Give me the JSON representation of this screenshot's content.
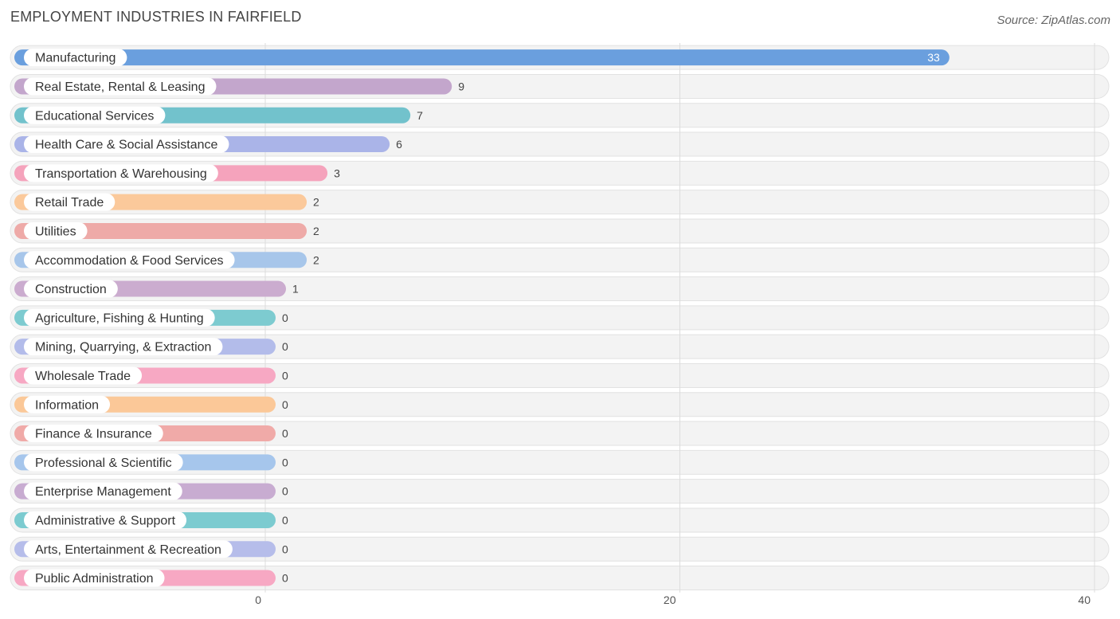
{
  "title": "EMPLOYMENT INDUSTRIES IN FAIRFIELD",
  "source": "Source: ZipAtlas.com",
  "chart_data": {
    "type": "bar",
    "orientation": "horizontal",
    "title": "EMPLOYMENT INDUSTRIES IN FAIRFIELD",
    "xlim": [
      0,
      40
    ],
    "xticks": [
      0,
      20,
      40
    ],
    "grid": true,
    "categories": [
      "Manufacturing",
      "Real Estate, Rental & Leasing",
      "Educational Services",
      "Health Care & Social Assistance",
      "Transportation & Warehousing",
      "Retail Trade",
      "Utilities",
      "Accommodation & Food Services",
      "Construction",
      "Agriculture, Fishing & Hunting",
      "Mining, Quarrying, & Extraction",
      "Wholesale Trade",
      "Information",
      "Finance & Insurance",
      "Professional & Scientific",
      "Enterprise Management",
      "Administrative & Support",
      "Arts, Entertainment & Recreation",
      "Public Administration"
    ],
    "values": [
      33,
      9,
      7,
      6,
      3,
      2,
      2,
      2,
      1,
      0,
      0,
      0,
      0,
      0,
      0,
      0,
      0,
      0,
      0
    ],
    "colors": [
      "#6a9fde",
      "#c3a6cc",
      "#72c2cc",
      "#aab4e8",
      "#f5a3bc",
      "#fbc99b",
      "#eeaaa8",
      "#a7c6ea",
      "#cbaccf",
      "#7dcbd0",
      "#b3bcea",
      "#f7a8c3",
      "#fbc898",
      "#f0aaa8",
      "#a6c6ec",
      "#c8acd1",
      "#7ccbd0",
      "#b6bdea",
      "#f7a8c3"
    ]
  }
}
